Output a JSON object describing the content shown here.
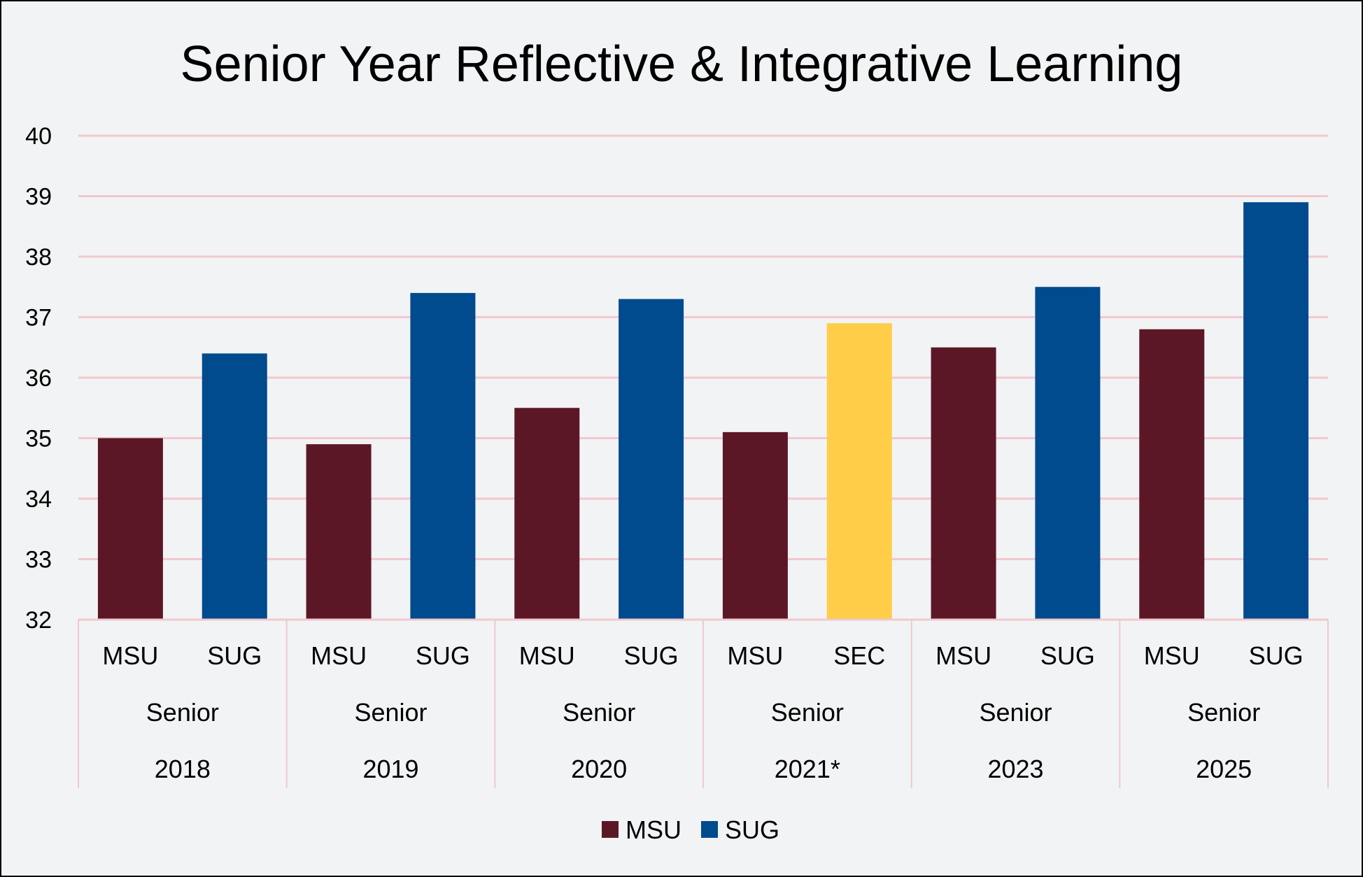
{
  "chart_data": {
    "type": "bar",
    "title": "Senior Year Reflective & Integrative Learning",
    "xlabel": "",
    "ylabel": "",
    "ylim": [
      32,
      40
    ],
    "yticks": [
      "32",
      "33",
      "34",
      "35",
      "36",
      "37",
      "38",
      "39",
      "40"
    ],
    "grid": true,
    "legend_position": "bottom",
    "groups": [
      {
        "year": "2018",
        "level": "Senior",
        "bars": [
          {
            "label": "MSU",
            "value": 35.0,
            "series": "MSU"
          },
          {
            "label": "SUG",
            "value": 36.4,
            "series": "SUG"
          }
        ]
      },
      {
        "year": "2019",
        "level": "Senior",
        "bars": [
          {
            "label": "MSU",
            "value": 34.9,
            "series": "MSU"
          },
          {
            "label": "SUG",
            "value": 37.4,
            "series": "SUG"
          }
        ]
      },
      {
        "year": "2020",
        "level": "Senior",
        "bars": [
          {
            "label": "MSU",
            "value": 35.5,
            "series": "MSU"
          },
          {
            "label": "SUG",
            "value": 37.3,
            "series": "SUG"
          }
        ]
      },
      {
        "year": "2021*",
        "level": "Senior",
        "bars": [
          {
            "label": "MSU",
            "value": 35.1,
            "series": "MSU"
          },
          {
            "label": "SEC",
            "value": 36.9,
            "series": "SEC"
          }
        ]
      },
      {
        "year": "2023",
        "level": "Senior",
        "bars": [
          {
            "label": "MSU",
            "value": 36.5,
            "series": "MSU"
          },
          {
            "label": "SUG",
            "value": 37.5,
            "series": "SUG"
          }
        ]
      },
      {
        "year": "2025",
        "level": "Senior",
        "bars": [
          {
            "label": "MSU",
            "value": 36.8,
            "series": "MSU"
          },
          {
            "label": "SUG",
            "value": 38.9,
            "series": "SUG"
          }
        ]
      }
    ],
    "legend": [
      {
        "name": "MSU",
        "color": "#5c1726"
      },
      {
        "name": "SUG",
        "color": "#004b8d"
      }
    ],
    "colors": {
      "MSU": "#5c1726",
      "SUG": "#004b8d",
      "SEC": "#ffcd48"
    }
  }
}
